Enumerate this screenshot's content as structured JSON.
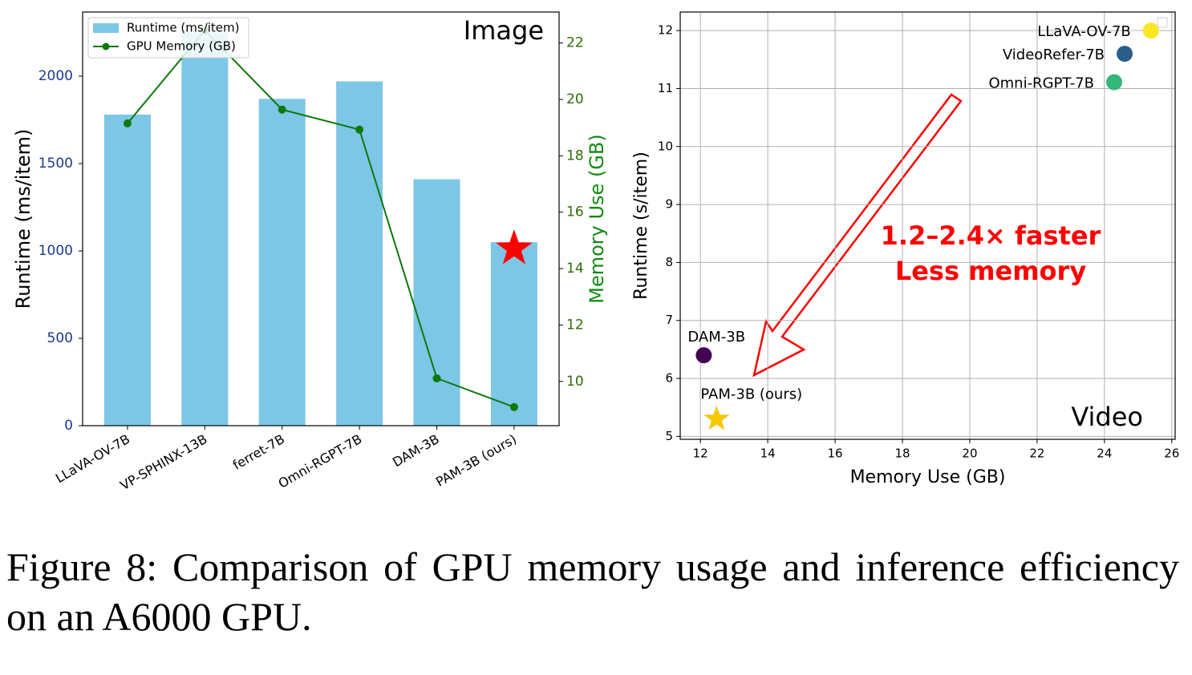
{
  "chart_data": [
    {
      "type": "bar",
      "categories": [
        "LLaVA-OV-7B",
        "VP-SPHINX-13B",
        "ferret-7B",
        "Omni-RGPT-7B",
        "DAM-3B",
        "PAM-3B (ours)"
      ],
      "series": [
        {
          "name": "Runtime (ms/item)",
          "color": "#7ec6e6",
          "values": [
            1780,
            2250,
            1870,
            1970,
            1410,
            1050
          ]
        },
        {
          "name": "GPU Memory (GB)",
          "color": "#0b7a0b",
          "type": "line",
          "axis": "y2",
          "values": [
            19.15,
            22.45,
            19.64,
            18.93,
            10.11,
            9.09
          ]
        }
      ],
      "ylim": [
        0,
        2367
      ],
      "yticks": [
        0,
        500,
        1000,
        1500,
        2000
      ],
      "y2lim": [
        8.43,
        23.1
      ],
      "y2ticks": [
        10,
        12,
        14,
        16,
        18,
        20,
        22
      ],
      "ylabel": "Runtime (ms/item)",
      "y2label": "Memory Use (GB)",
      "annotation": "Image",
      "legend": "upper left",
      "grid": false
    },
    {
      "type": "scatter",
      "labels": [
        "LLaVA-OV-7B",
        "VideoRefer-7B",
        "Omni-RGPT-7B",
        "DAM-3B",
        "PAM-3B (ours)"
      ],
      "x": [
        25.38,
        24.6,
        24.29,
        12.1,
        12.48
      ],
      "y": [
        12,
        11.6,
        11.11,
        6.4,
        5.3
      ],
      "colors": [
        "#fde725",
        "#2a5d8a",
        "#35b779",
        "#440154",
        "#f5c800"
      ],
      "markers": [
        "circle",
        "circle",
        "circle",
        "circle",
        "star"
      ],
      "xlim": [
        11.4,
        26.1
      ],
      "xticks": [
        12,
        14,
        16,
        18,
        20,
        22,
        24,
        26
      ],
      "ylim": [
        4.95,
        12.32
      ],
      "yticks": [
        5,
        6,
        7,
        8,
        9,
        10,
        11,
        12
      ],
      "xlabel": "Memory Use (GB)",
      "ylabel": "Runtime (s/item)",
      "annotations": [
        "1.2–2.4× faster",
        "Less memory"
      ],
      "annotation": "Video",
      "grid": true
    }
  ],
  "caption": "Figure 8: Comparison of GPU memory usage and inference efficiency on an A6000 GPU."
}
